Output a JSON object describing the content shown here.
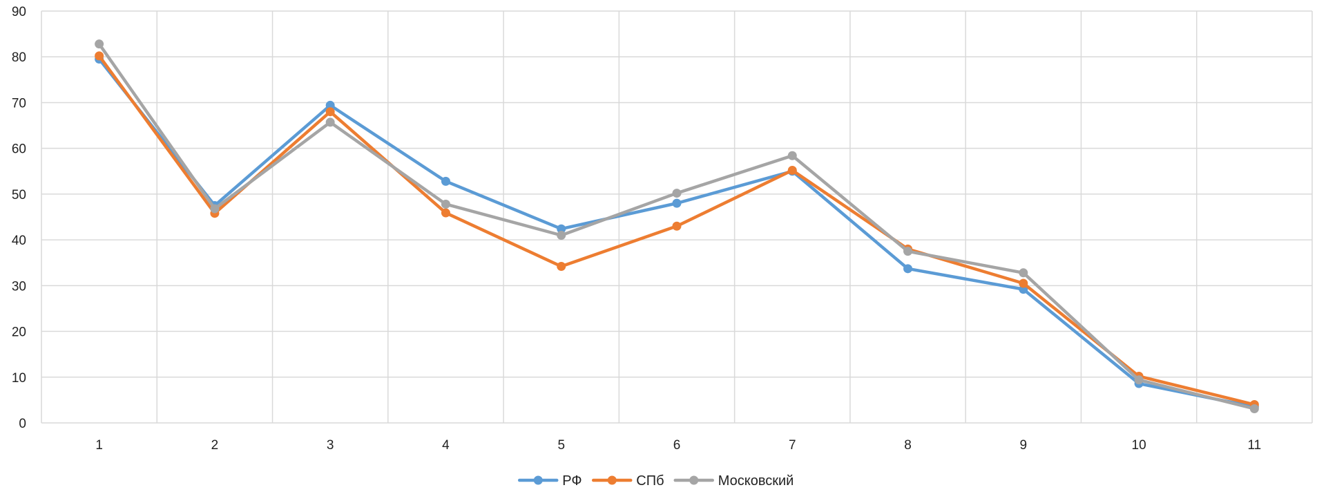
{
  "chart_data": {
    "type": "line",
    "title": "",
    "xlabel": "",
    "ylabel": "",
    "x": [
      "1",
      "2",
      "3",
      "4",
      "5",
      "6",
      "7",
      "8",
      "9",
      "10",
      "11"
    ],
    "ylim": [
      0,
      90
    ],
    "yticks": [
      0,
      10,
      20,
      30,
      40,
      50,
      60,
      70,
      80,
      90
    ],
    "grid": true,
    "legend_position": "bottom",
    "series": [
      {
        "name": "РФ",
        "color": "#5B9BD5",
        "values": [
          79.5,
          47.5,
          69.4,
          52.8,
          42.4,
          48.0,
          55.0,
          33.7,
          29.2,
          8.6,
          3.5
        ]
      },
      {
        "name": "СПб",
        "color": "#ED7D31",
        "values": [
          80.2,
          45.8,
          68.0,
          45.9,
          34.2,
          43.0,
          55.2,
          38.0,
          30.5,
          10.2,
          4.0
        ]
      },
      {
        "name": "Московский",
        "color": "#A5A5A5",
        "values": [
          82.8,
          46.8,
          65.7,
          47.8,
          41.0,
          50.2,
          58.4,
          37.5,
          32.8,
          9.4,
          3.1
        ]
      }
    ]
  }
}
